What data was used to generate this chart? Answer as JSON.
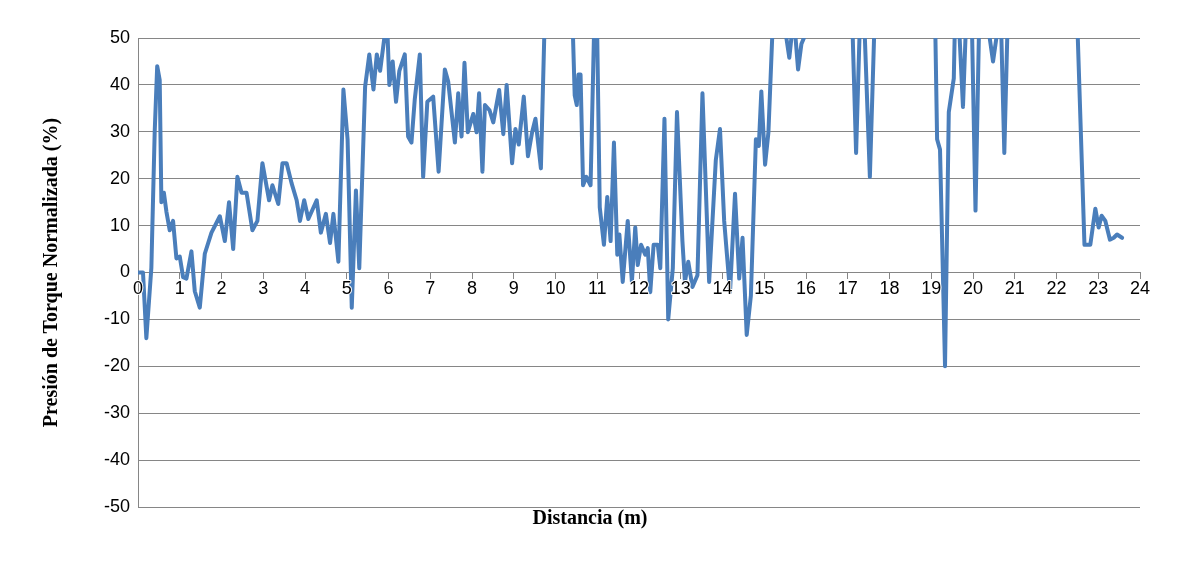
{
  "chart_data": {
    "type": "line",
    "xlabel": "Distancia (m)",
    "ylabel": "Presión de Torque Normalizada (%)",
    "xlim": [
      0,
      24
    ],
    "xticks": [
      0,
      1,
      2,
      3,
      4,
      5,
      6,
      7,
      8,
      9,
      10,
      11,
      12,
      13,
      14,
      15,
      16,
      17,
      18,
      19,
      20,
      21,
      22,
      23,
      24
    ],
    "ylim": [
      -50,
      50
    ],
    "yticks": [
      -50,
      -40,
      -30,
      -20,
      -10,
      0,
      10,
      20,
      30,
      40,
      50
    ],
    "grid": "y",
    "legend": false,
    "marker": "none",
    "line_style": "solid",
    "series": [
      {
        "color": "#4a7ebb",
        "x": [
          0,
          0.12,
          0.2,
          0.32,
          0.4,
          0.46,
          0.52,
          0.56,
          0.62,
          0.68,
          0.76,
          0.84,
          0.92,
          1.0,
          1.08,
          1.16,
          1.28,
          1.36,
          1.48,
          1.6,
          1.76,
          1.96,
          2.08,
          2.18,
          2.28,
          2.38,
          2.48,
          2.6,
          2.74,
          2.86,
          2.98,
          3.14,
          3.22,
          3.36,
          3.46,
          3.56,
          3.68,
          3.8,
          3.88,
          3.98,
          4.08,
          4.28,
          4.38,
          4.5,
          4.6,
          4.68,
          4.8,
          4.92,
          5.02,
          5.12,
          5.22,
          5.3,
          5.44,
          5.54,
          5.64,
          5.72,
          5.8,
          5.9,
          5.95,
          5.98,
          6.02,
          6.1,
          6.18,
          6.26,
          6.39,
          6.47,
          6.55,
          6.63,
          6.75,
          6.83,
          6.93,
          7.07,
          7.2,
          7.35,
          7.43,
          7.59,
          7.67,
          7.75,
          7.82,
          7.9,
          8.03,
          8.11,
          8.17,
          8.25,
          8.31,
          8.42,
          8.51,
          8.65,
          8.75,
          8.83,
          8.96,
          9.04,
          9.12,
          9.24,
          9.34,
          9.44,
          9.52,
          9.65,
          9.73,
          10.1,
          10.42,
          10.46,
          10.51,
          10.55,
          10.6,
          10.66,
          10.74,
          10.84,
          10.92,
          10.96,
          11.0,
          11.06,
          11.16,
          11.24,
          11.32,
          11.4,
          11.48,
          11.53,
          11.61,
          11.73,
          11.83,
          11.91,
          11.97,
          12.05,
          12.15,
          12.21,
          12.27,
          12.35,
          12.45,
          12.51,
          12.61,
          12.7,
          12.81,
          12.91,
          13.04,
          13.1,
          13.18,
          13.28,
          13.4,
          13.52,
          13.68,
          13.84,
          13.94,
          14.04,
          14.18,
          14.3,
          14.4,
          14.48,
          14.58,
          14.68,
          14.8,
          14.87,
          14.93,
          15.02,
          15.1,
          15.19,
          15.36,
          15.53,
          15.6,
          15.65,
          15.7,
          15.75,
          15.81,
          15.89,
          15.95,
          16.5,
          17.12,
          17.2,
          17.28,
          17.35,
          17.41,
          17.53,
          17.63,
          18.4,
          19.1,
          19.14,
          19.21,
          19.33,
          19.42,
          19.54,
          19.56,
          19.62,
          19.68,
          19.76,
          19.82,
          19.9,
          19.98,
          20.06,
          20.14,
          20.27,
          20.4,
          20.48,
          20.56,
          20.62,
          20.68,
          20.75,
          20.82,
          21.7,
          22.51,
          22.67,
          22.81,
          22.93,
          23.01,
          23.08,
          23.17,
          23.28,
          23.37,
          23.45,
          23.57
        ],
        "values": [
          0,
          0,
          -14,
          1,
          30,
          44,
          41,
          15,
          17,
          13,
          9,
          11,
          3,
          3.4,
          -1,
          -1.3,
          4.5,
          -4,
          -7.5,
          4,
          8.5,
          12,
          6.7,
          15,
          5,
          20.4,
          17,
          17,
          9,
          11,
          23.3,
          15.4,
          18.6,
          14.6,
          23.3,
          23.3,
          19,
          15.4,
          11,
          15.4,
          11.4,
          15.4,
          8.5,
          12.5,
          6.3,
          12.5,
          2.3,
          39,
          28.4,
          -7.5,
          17.5,
          0.9,
          39.6,
          46.5,
          39,
          46.5,
          43,
          50,
          null,
          50,
          40,
          45,
          36.4,
          43,
          46.5,
          29,
          27.7,
          37,
          46.5,
          20.4,
          36.4,
          37.5,
          21.5,
          43.3,
          40.7,
          27.7,
          38.2,
          29,
          44.7,
          29.9,
          33.8,
          29.9,
          38.2,
          21.5,
          35.7,
          34.6,
          32,
          38.9,
          29.5,
          40,
          23.3,
          30.6,
          27.3,
          37.5,
          24.8,
          29.9,
          32.8,
          22.2,
          50,
          null,
          50,
          37.8,
          35.7,
          42.2,
          42.2,
          18.6,
          20.4,
          18.6,
          50,
          null,
          50,
          13.9,
          5.9,
          16.1,
          6.7,
          27.7,
          3.8,
          8.1,
          -2,
          11,
          -2,
          9.6,
          1.6,
          5.9,
          3.8,
          5.2,
          -4.2,
          5.9,
          5.9,
          0.9,
          32.8,
          -10,
          0.9,
          34.2,
          6.7,
          -2,
          2.3,
          -3.1,
          -0.6,
          38.2,
          -2,
          24,
          30.6,
          11,
          -4.2,
          16.8,
          -1.3,
          7.4,
          -13.3,
          -4.9,
          28.4,
          27,
          38.6,
          23,
          29.9,
          50,
          null,
          50,
          45.8,
          50,
          null,
          50,
          43.3,
          48.7,
          50,
          null,
          50,
          25.5,
          50,
          null,
          50,
          20.4,
          50,
          null,
          50,
          28.4,
          26.2,
          -20,
          34.2,
          41.4,
          50,
          null,
          50,
          35.3,
          50,
          null,
          50,
          13.2,
          50,
          null,
          50,
          45,
          50,
          null,
          50,
          25.5,
          50,
          null,
          50,
          5.9,
          5.9,
          13.6,
          9.6,
          12.1,
          11,
          7,
          7.4,
          8.1,
          7.4
        ]
      }
    ]
  }
}
